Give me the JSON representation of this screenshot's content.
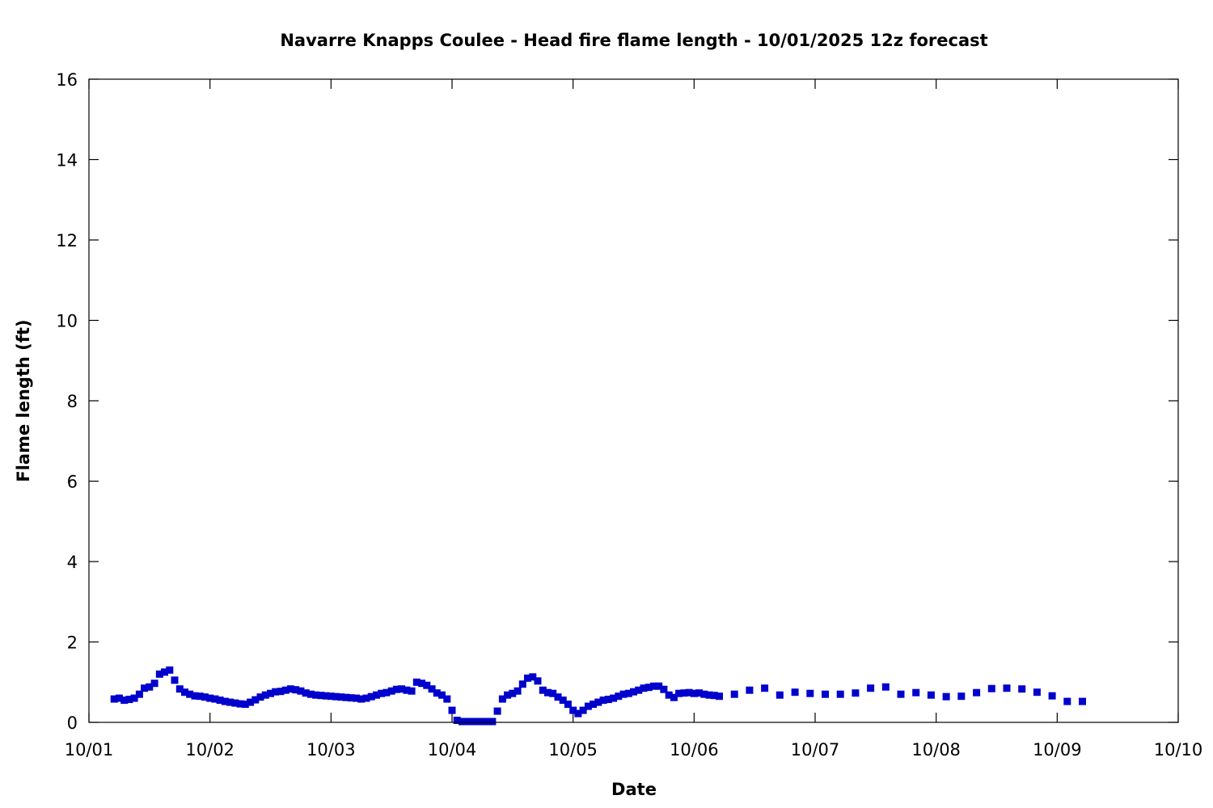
{
  "chart_data": {
    "type": "scatter",
    "title": "Navarre Knapps Coulee - Head fire flame length - 10/01/2025 12z forecast",
    "xlabel": "Date",
    "ylabel": "Flame length (ft)",
    "xlim": [
      "10/01",
      "10/10"
    ],
    "ylim": [
      0,
      16
    ],
    "x_ticks": [
      "10/01",
      "10/02",
      "10/03",
      "10/04",
      "10/05",
      "10/06",
      "10/07",
      "10/08",
      "10/09",
      "10/10"
    ],
    "y_ticks": [
      0,
      2,
      4,
      6,
      8,
      10,
      12,
      14,
      16
    ],
    "grid": false,
    "legend": "none",
    "marker": "square",
    "color": "#0000cc",
    "series": [
      {
        "x": [
          "10/01 05:00",
          "10/01 06:00",
          "10/01 07:00",
          "10/01 08:00",
          "10/01 09:00",
          "10/01 10:00",
          "10/01 11:00",
          "10/01 12:00",
          "10/01 13:00",
          "10/01 14:00",
          "10/01 15:00",
          "10/01 16:00",
          "10/01 17:00",
          "10/01 18:00",
          "10/01 19:00",
          "10/01 20:00",
          "10/01 21:00",
          "10/01 22:00",
          "10/01 23:00",
          "10/02 00:00",
          "10/02 01:00",
          "10/02 02:00",
          "10/02 03:00",
          "10/02 04:00",
          "10/02 05:00",
          "10/02 06:00",
          "10/02 07:00",
          "10/02 08:00",
          "10/02 09:00",
          "10/02 10:00",
          "10/02 11:00",
          "10/02 12:00",
          "10/02 13:00",
          "10/02 14:00",
          "10/02 15:00",
          "10/02 16:00",
          "10/02 17:00",
          "10/02 18:00",
          "10/02 19:00",
          "10/02 20:00",
          "10/02 21:00",
          "10/02 22:00",
          "10/02 23:00",
          "10/03 00:00",
          "10/03 01:00",
          "10/03 02:00",
          "10/03 03:00",
          "10/03 04:00",
          "10/03 05:00",
          "10/03 06:00",
          "10/03 07:00",
          "10/03 08:00",
          "10/03 09:00",
          "10/03 10:00",
          "10/03 11:00",
          "10/03 12:00",
          "10/03 13:00",
          "10/03 14:00",
          "10/03 15:00",
          "10/03 16:00",
          "10/03 17:00",
          "10/03 18:00",
          "10/03 19:00",
          "10/03 20:00",
          "10/03 21:00",
          "10/03 22:00",
          "10/03 23:00",
          "10/04 00:00",
          "10/04 01:00",
          "10/04 02:00",
          "10/04 03:00",
          "10/04 04:00",
          "10/04 05:00",
          "10/04 06:00",
          "10/04 07:00",
          "10/04 08:00",
          "10/04 09:00",
          "10/04 10:00",
          "10/04 11:00",
          "10/04 12:00",
          "10/04 13:00",
          "10/04 14:00",
          "10/04 15:00",
          "10/04 16:00",
          "10/04 17:00",
          "10/04 18:00",
          "10/04 19:00",
          "10/04 20:00",
          "10/04 21:00",
          "10/04 22:00",
          "10/04 23:00",
          "10/05 00:00",
          "10/05 01:00",
          "10/05 02:00",
          "10/05 03:00",
          "10/05 04:00",
          "10/05 05:00",
          "10/05 06:00",
          "10/05 07:00",
          "10/05 08:00",
          "10/05 09:00",
          "10/05 10:00",
          "10/05 11:00",
          "10/05 12:00",
          "10/05 13:00",
          "10/05 14:00",
          "10/05 15:00",
          "10/05 16:00",
          "10/05 17:00",
          "10/05 18:00",
          "10/05 19:00",
          "10/05 20:00",
          "10/05 21:00",
          "10/05 22:00",
          "10/05 23:00",
          "10/06 00:00",
          "10/06 01:00",
          "10/06 02:00",
          "10/06 03:00",
          "10/06 04:00",
          "10/06 05:00",
          "10/06 08:00",
          "10/06 11:00",
          "10/06 14:00",
          "10/06 17:00",
          "10/06 20:00",
          "10/06 23:00",
          "10/07 02:00",
          "10/07 05:00",
          "10/07 08:00",
          "10/07 11:00",
          "10/07 14:00",
          "10/07 17:00",
          "10/07 20:00",
          "10/07 23:00",
          "10/08 02:00",
          "10/08 05:00",
          "10/08 08:00",
          "10/08 11:00",
          "10/08 14:00",
          "10/08 17:00",
          "10/08 20:00",
          "10/08 23:00",
          "10/09 02:00",
          "10/09 05:00"
        ],
        "y": [
          0.58,
          0.6,
          0.55,
          0.57,
          0.6,
          0.7,
          0.85,
          0.88,
          0.97,
          1.2,
          1.25,
          1.3,
          1.05,
          0.83,
          0.75,
          0.7,
          0.66,
          0.65,
          0.63,
          0.6,
          0.58,
          0.55,
          0.52,
          0.5,
          0.48,
          0.46,
          0.45,
          0.5,
          0.56,
          0.63,
          0.68,
          0.72,
          0.76,
          0.77,
          0.8,
          0.83,
          0.81,
          0.78,
          0.73,
          0.7,
          0.68,
          0.67,
          0.66,
          0.65,
          0.64,
          0.63,
          0.62,
          0.61,
          0.6,
          0.58,
          0.6,
          0.64,
          0.68,
          0.72,
          0.74,
          0.78,
          0.82,
          0.83,
          0.8,
          0.78,
          1.0,
          0.97,
          0.92,
          0.83,
          0.73,
          0.68,
          0.58,
          0.3,
          0.05,
          0.02,
          0.02,
          0.02,
          0.02,
          0.02,
          0.02,
          0.02,
          0.28,
          0.58,
          0.68,
          0.72,
          0.78,
          0.95,
          1.1,
          1.13,
          1.03,
          0.8,
          0.74,
          0.72,
          0.63,
          0.55,
          0.45,
          0.3,
          0.22,
          0.3,
          0.4,
          0.45,
          0.5,
          0.55,
          0.57,
          0.6,
          0.65,
          0.7,
          0.72,
          0.76,
          0.8,
          0.85,
          0.87,
          0.9,
          0.9,
          0.82,
          0.68,
          0.62,
          0.72,
          0.73,
          0.74,
          0.72,
          0.73,
          0.7,
          0.68,
          0.67,
          0.65,
          0.7,
          0.8,
          0.85,
          0.68,
          0.75,
          0.72,
          0.7,
          0.7,
          0.73,
          0.85,
          0.88,
          0.7,
          0.74,
          0.68,
          0.64,
          0.65,
          0.74,
          0.84,
          0.85,
          0.83,
          0.75,
          0.66,
          0.52,
          0.52
        ]
      }
    ]
  }
}
